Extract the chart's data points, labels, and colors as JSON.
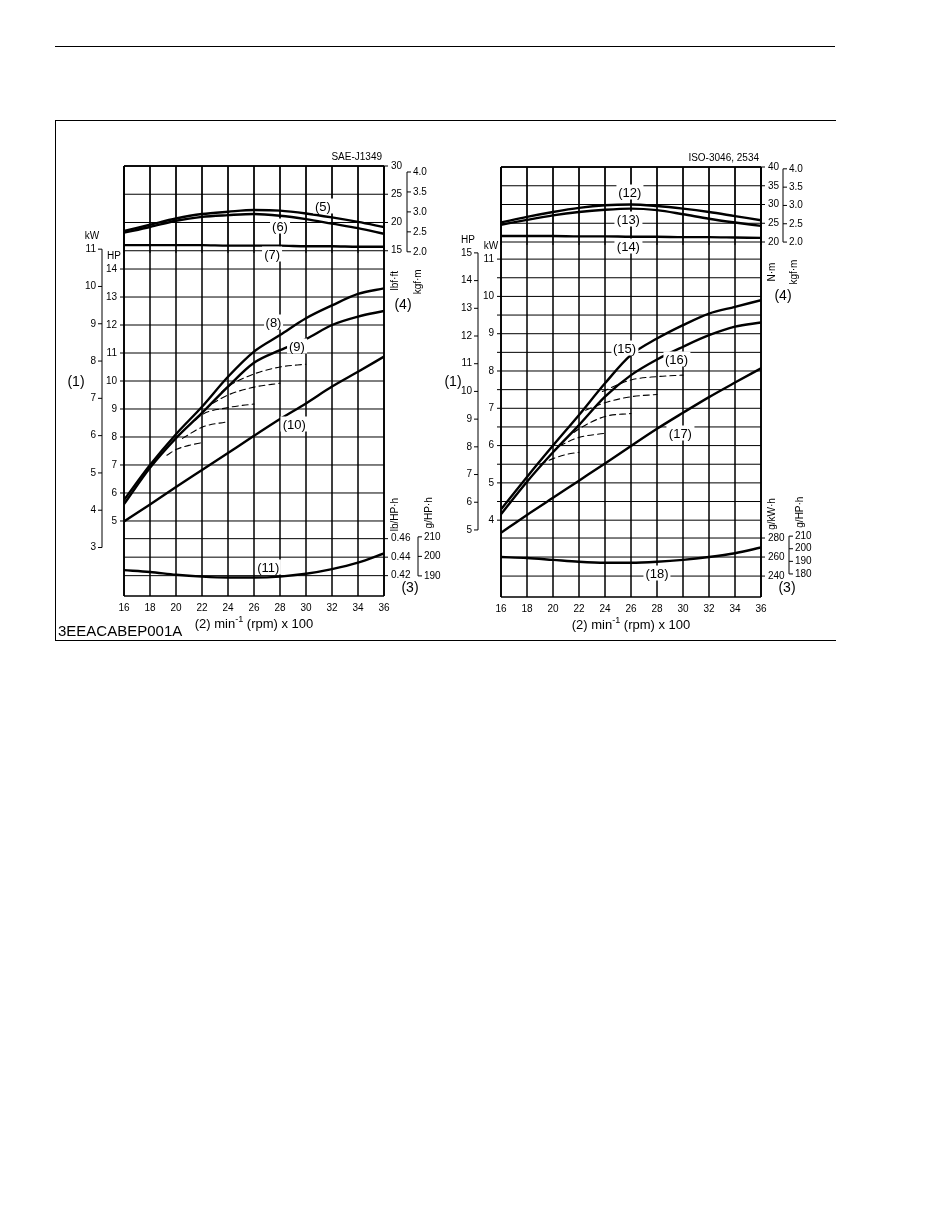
{
  "chart_data": [
    {
      "type": "line",
      "xlim": [
        16,
        36
      ],
      "xticks": [
        16,
        18,
        20,
        22,
        24,
        26,
        28,
        30,
        32,
        34,
        36
      ],
      "tick_labels": "y",
      "ylabel": "HP",
      "ylim": [
        2.32,
        17.68
      ],
      "yticks": [
        5,
        6,
        7,
        8,
        9,
        10,
        11,
        12,
        13,
        14
      ],
      "y2label": "kW",
      "y2lim": [
        1.7,
        13.23
      ],
      "y2ticks": [
        3,
        4,
        5,
        6,
        7,
        8,
        9,
        10,
        11
      ],
      "grid": true,
      "legend": false,
      "marker": "none",
      "line_style": "solid",
      "x": [
        16,
        18,
        20,
        22,
        24,
        26,
        28,
        30,
        32,
        34,
        36
      ],
      "series": [
        {
          "name": "(8)",
          "color": "#000000",
          "values": [
            5.75,
            7.0,
            8.1,
            9.08,
            10.15,
            11.05,
            11.64,
            12.24,
            12.7,
            13.11,
            13.31
          ]
        },
        {
          "name": "(9)",
          "color": "#000000",
          "values": [
            5.6,
            6.9,
            7.96,
            8.86,
            9.8,
            10.65,
            11.1,
            11.5,
            12.0,
            12.3,
            12.5
          ]
        },
        {
          "name": "(10)",
          "color": "#000000",
          "values": [
            4.98,
            5.59,
            6.21,
            6.82,
            7.43,
            8.04,
            8.64,
            9.2,
            9.8,
            10.33,
            10.87
          ]
        },
        {
          "color": "#000000",
          "line_style": "dashed",
          "x": [
            23.5,
            24,
            26,
            28,
            30
          ],
          "values": [
            9.6,
            9.8,
            10.25,
            10.5,
            10.6
          ]
        },
        {
          "color": "#000000",
          "line_style": "dashed",
          "x": [
            22.8,
            24,
            26,
            28
          ],
          "values": [
            9.2,
            9.5,
            9.78,
            9.92
          ]
        },
        {
          "color": "#000000",
          "line_style": "dashed",
          "x": [
            21.5,
            22,
            24,
            26
          ],
          "values": [
            8.6,
            8.8,
            9.05,
            9.18
          ]
        },
        {
          "color": "#000000",
          "line_style": "dashed",
          "x": [
            20.5,
            22,
            24
          ],
          "values": [
            7.95,
            8.35,
            8.55
          ]
        },
        {
          "color": "#000000",
          "line_style": "dashed",
          "x": [
            19.3,
            20,
            21,
            22
          ],
          "values": [
            7.35,
            7.55,
            7.7,
            7.8
          ]
        }
      ],
      "annotations": [
        "(1)",
        "3EEACABEP001A"
      ]
    },
    {
      "type": "line",
      "title": "SAE-J1349",
      "xlim": [
        16,
        36
      ],
      "xticks": [
        16,
        18,
        20,
        22,
        24,
        26,
        28,
        30,
        32,
        34,
        36
      ],
      "tick_labels": "y",
      "ylabel": "lbf·ft",
      "ylim": [
        14.6,
        30
      ],
      "yticks": [
        15,
        20,
        25,
        30
      ],
      "y2label": "kgf·m",
      "y2lim": [
        1.97,
        4.15
      ],
      "y2ticks": [
        {
          "value": 2,
          "label": "2.0"
        },
        {
          "value": 2.5,
          "label": "2.5"
        },
        {
          "value": 3,
          "label": "3.0"
        },
        {
          "value": 3.5,
          "label": "3.5"
        },
        {
          "value": 4,
          "label": "4.0"
        }
      ],
      "grid": true,
      "legend": false,
      "marker": "none",
      "line_style": "solid",
      "x": [
        16,
        18,
        20,
        22,
        24,
        26,
        28,
        30,
        32,
        34,
        36
      ],
      "series": [
        {
          "name": "(5)",
          "color": "#000000",
          "values": [
            18.5,
            19.6,
            20.7,
            21.5,
            21.9,
            22.2,
            22.1,
            21.6,
            20.9,
            20.1,
            19.2
          ]
        },
        {
          "name": "(6)",
          "color": "#000000",
          "values": [
            18.2,
            19.2,
            20.3,
            21.0,
            21.3,
            21.5,
            21.2,
            20.6,
            19.8,
            19.0,
            18.0
          ]
        },
        {
          "name": "(7)",
          "color": "#000000",
          "values": [
            16.0,
            16.0,
            16.0,
            16.0,
            15.9,
            15.9,
            15.9,
            15.8,
            15.8,
            15.7,
            15.7
          ]
        }
      ],
      "annotations": [
        "(4)"
      ]
    },
    {
      "type": "line",
      "xlabel": "(2) min$^{-1}$ (rpm) x 100",
      "xlim": [
        16,
        36
      ],
      "xticks": [
        16,
        18,
        20,
        22,
        24,
        26,
        28,
        30,
        32,
        34,
        36
      ],
      "ylabel": "lb/HP·h",
      "ylim": [
        0.398,
        0.863
      ],
      "yticks": [
        0.42,
        0.44,
        0.46
      ],
      "y2label": "g/HP·h",
      "y2lim": [
        179.7,
        400
      ],
      "y2ticks": [
        190,
        200,
        210
      ],
      "grid": true,
      "legend": false,
      "marker": "none",
      "line_style": "solid",
      "x": [
        16,
        18,
        20,
        22,
        24,
        26,
        28,
        30,
        32,
        34,
        36
      ],
      "series": [
        {
          "name": "(11)",
          "color": "#000000",
          "values": [
            0.426,
            0.424,
            0.421,
            0.419,
            0.418,
            0.418,
            0.419,
            0.422,
            0.427,
            0.434,
            0.444
          ]
        }
      ],
      "annotations": [
        "(3)"
      ]
    },
    {
      "type": "line",
      "xlim": [
        16,
        36
      ],
      "xticks": [
        16,
        18,
        20,
        22,
        24,
        26,
        28,
        30,
        32,
        34,
        36
      ],
      "tick_labels": "y",
      "ylabel": "kW",
      "ylim": [
        1.94,
        13.47
      ],
      "yticks": [
        4,
        {
          "value": 4.5,
          "label": null
        },
        5,
        {
          "value": 5.5,
          "label": null
        },
        6,
        {
          "value": 6.5,
          "label": null
        },
        7,
        {
          "value": 7.5,
          "label": null
        },
        8,
        {
          "value": 8.5,
          "label": null
        },
        9,
        {
          "value": 9.5,
          "label": null
        },
        10,
        {
          "value": 10.5,
          "label": null
        },
        11
      ],
      "y2label": "HP",
      "y2lim": [
        2.58,
        18.1
      ],
      "y2ticks": [
        5,
        6,
        7,
        8,
        9,
        10,
        11,
        12,
        13,
        14,
        15
      ],
      "grid": true,
      "legend": false,
      "marker": "none",
      "line_style": "solid",
      "x": [
        16,
        18,
        20,
        22,
        24,
        26,
        28,
        30,
        32,
        34,
        36
      ],
      "series": [
        {
          "name": "(15)",
          "color": "#000000",
          "values": [
            4.29,
            5.16,
            6.0,
            6.82,
            7.67,
            8.43,
            8.87,
            9.23,
            9.54,
            9.72,
            9.9
          ]
        },
        {
          "name": "(16)",
          "color": "#000000",
          "values": [
            4.16,
            5.03,
            5.82,
            6.55,
            7.31,
            7.89,
            8.31,
            8.65,
            8.96,
            9.19,
            9.3
          ]
        },
        {
          "name": "(17)",
          "color": "#000000",
          "values": [
            3.66,
            4.14,
            4.6,
            5.06,
            5.52,
            5.99,
            6.45,
            6.88,
            7.3,
            7.69,
            8.07
          ]
        },
        {
          "color": "#000000",
          "line_style": "dashed",
          "x": [
            23.8,
            26,
            28,
            30
          ],
          "values": [
            7.45,
            7.76,
            7.85,
            7.89
          ]
        },
        {
          "color": "#000000",
          "line_style": "dashed",
          "x": [
            22.5,
            24,
            26,
            28
          ],
          "values": [
            6.95,
            7.15,
            7.31,
            7.37
          ]
        },
        {
          "color": "#000000",
          "line_style": "dashed",
          "x": [
            21.6,
            22,
            24,
            26
          ],
          "values": [
            6.35,
            6.45,
            6.78,
            6.86
          ]
        },
        {
          "color": "#000000",
          "line_style": "dashed",
          "x": [
            20.5,
            22,
            24
          ],
          "values": [
            6.0,
            6.22,
            6.33
          ]
        },
        {
          "color": "#000000",
          "line_style": "dashed",
          "x": [
            19,
            20,
            21,
            22
          ],
          "values": [
            5.5,
            5.65,
            5.76,
            5.82
          ]
        }
      ],
      "annotations": [
        "(1)"
      ]
    },
    {
      "type": "line",
      "title": "ISO-3046, 2534",
      "xlim": [
        16,
        36
      ],
      "xticks": [
        16,
        18,
        20,
        22,
        24,
        26,
        28,
        30,
        32,
        34,
        36
      ],
      "tick_labels": "y",
      "ylabel": "N·m",
      "ylim": [
        19.2,
        40
      ],
      "yticks": [
        20,
        25,
        30,
        35,
        40
      ],
      "y2label": "kgf·m",
      "y2lim": [
        1.92,
        4.05
      ],
      "y2ticks": [
        {
          "value": 2,
          "label": "2.0"
        },
        {
          "value": 2.5,
          "label": "2.5"
        },
        {
          "value": 3,
          "label": "3.0"
        },
        {
          "value": 3.5,
          "label": "3.5"
        },
        {
          "value": 4,
          "label": "4.0"
        }
      ],
      "grid": true,
      "legend": false,
      "marker": "none",
      "line_style": "solid",
      "x": [
        16,
        18,
        20,
        22,
        24,
        26,
        28,
        30,
        32,
        34,
        36
      ],
      "series": [
        {
          "name": "(12)",
          "color": "#000000",
          "values": [
            25.2,
            26.7,
            28.0,
            29.1,
            29.8,
            30.0,
            29.6,
            28.9,
            28.0,
            26.9,
            25.8
          ]
        },
        {
          "name": "(13)",
          "color": "#000000",
          "values": [
            24.6,
            25.9,
            27.1,
            28.0,
            28.6,
            28.9,
            28.5,
            27.4,
            26.2,
            25.2,
            24.3
          ]
        },
        {
          "name": "(14)",
          "color": "#000000",
          "values": [
            21.6,
            21.6,
            21.6,
            21.5,
            21.5,
            21.4,
            21.4,
            21.3,
            21.3,
            21.2,
            21.1
          ]
        }
      ],
      "annotations": [
        "(4)"
      ]
    },
    {
      "type": "line",
      "xlabel": "(2) min$^{-1}$ (rpm) x 100",
      "xlim": [
        16,
        36
      ],
      "xticks": [
        16,
        18,
        20,
        22,
        24,
        26,
        28,
        30,
        32,
        34,
        36
      ],
      "ylabel": "g/kW·h",
      "ylim": [
        218,
        670
      ],
      "yticks": [
        240,
        260,
        280
      ],
      "y2label": "g/HP·h",
      "y2lim": [
        161.7,
        503
      ],
      "y2ticks": [
        180,
        190,
        200,
        210
      ],
      "grid": true,
      "legend": false,
      "marker": "none",
      "line_style": "solid",
      "x": [
        16,
        18,
        20,
        22,
        24,
        26,
        28,
        30,
        32,
        34,
        36
      ],
      "series": [
        {
          "name": "(18)",
          "color": "#000000",
          "values": [
            260,
            259,
            257,
            255,
            254,
            254,
            255,
            257,
            260,
            264,
            270
          ]
        }
      ],
      "annotations": [
        "(3)"
      ]
    }
  ]
}
